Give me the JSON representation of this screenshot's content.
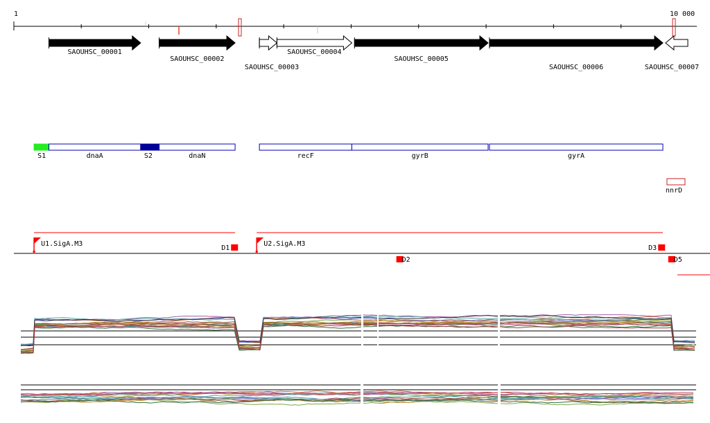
{
  "ruler": {
    "start": 1,
    "end": 10000,
    "start_label": "1",
    "end_label": "10 000"
  },
  "colors": {
    "gene_known": "#000000",
    "gene_unknown": "#ffffff",
    "region_outline": "#0000bb",
    "sigma_s1": "#22ee22",
    "sigma_s2": "#000099",
    "promoter": "#ff0000",
    "rna_outline": "#cc2222"
  },
  "genes": [
    {
      "label": "SAOUHSC_00001",
      "start": 520,
      "end": 1880,
      "strand": "+",
      "fill": "black",
      "label_row": 1
    },
    {
      "label": "SAOUHSC_00002",
      "start": 2155,
      "end": 3280,
      "strand": "+",
      "fill": "black",
      "label_row": 2
    },
    {
      "label": "SAOUHSC_00003",
      "start": 3640,
      "end": 3900,
      "strand": "+",
      "fill": "white",
      "label_row": 3
    },
    {
      "label": "SAOUHSC_00004",
      "start": 3900,
      "end": 5010,
      "strand": "+",
      "fill": "white",
      "label_row": 1
    },
    {
      "label": "SAOUHSC_00005",
      "start": 5050,
      "end": 7030,
      "strand": "+",
      "fill": "black",
      "label_row": 2
    },
    {
      "label": "SAOUHSC_00006",
      "start": 7050,
      "end": 9620,
      "strand": "+",
      "fill": "black",
      "label_row": 3
    },
    {
      "label": "SAOUHSC_00007",
      "start": 9660,
      "end": 9990,
      "strand": "-",
      "fill": "white",
      "label_row": 3
    }
  ],
  "regions": [
    {
      "label": "S1",
      "start": 300,
      "end": 520,
      "kind": "sigma",
      "color": "#22ee22"
    },
    {
      "label": "dnaA",
      "start": 520,
      "end": 1880,
      "kind": "gene"
    },
    {
      "label": "S2",
      "start": 1880,
      "end": 2155,
      "kind": "sigma",
      "color": "#000099"
    },
    {
      "label": "dnaN",
      "start": 2155,
      "end": 3280,
      "kind": "gene"
    },
    {
      "label": "recF",
      "start": 3640,
      "end": 5010,
      "kind": "gene"
    },
    {
      "label": "gyrB",
      "start": 5010,
      "end": 7030,
      "kind": "gene"
    },
    {
      "label": "gyrA",
      "start": 7050,
      "end": 9620,
      "kind": "gene"
    }
  ],
  "rna": [
    {
      "label": "nnrD",
      "start": 9660,
      "end": 9990
    }
  ],
  "transcription_units": [
    {
      "label": "U1.SigA.M3",
      "start": 300,
      "end": 3280
    },
    {
      "label": "U2.SigA.M3",
      "start": 3600,
      "end": 9620
    }
  ],
  "terminators": [
    {
      "label": "D1",
      "position": 3220
    },
    {
      "label": "D2",
      "position": 5670
    },
    {
      "label": "D3",
      "position": 9550
    },
    {
      "label": "D5",
      "position": 9700
    }
  ]
}
